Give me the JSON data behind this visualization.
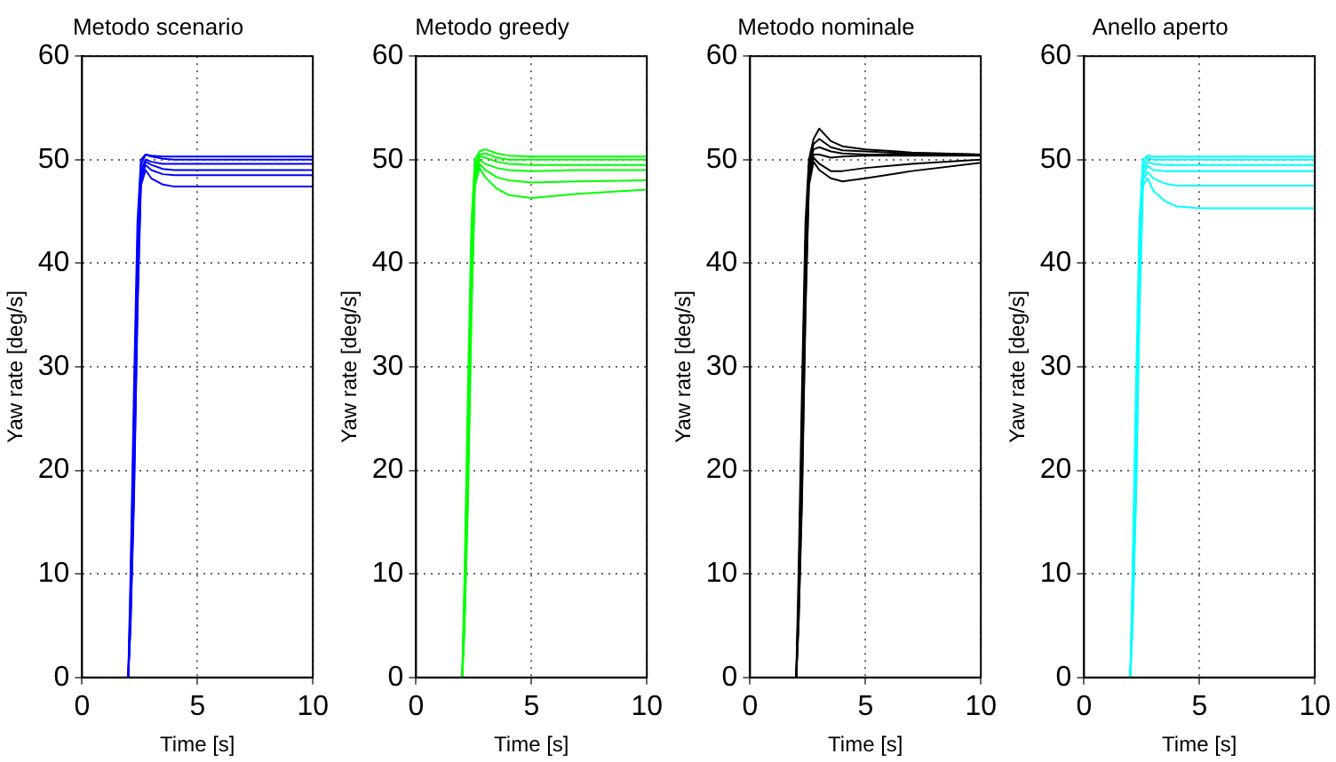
{
  "chart_data": [
    {
      "type": "line",
      "title": "Metodo scenario",
      "xlabel": "Time [s]",
      "ylabel": "Yaw rate [deg/s]",
      "xlim": [
        0,
        10
      ],
      "ylim": [
        0,
        60
      ],
      "xticks": [
        0,
        5,
        10
      ],
      "yticks": [
        0,
        10,
        20,
        30,
        40,
        50,
        60
      ],
      "grid": true,
      "marker": "none",
      "line_style": "solid",
      "series": [
        {
          "color": "#0000ff",
          "x": [
            2,
            2.1,
            2.25,
            2.4,
            2.55,
            2.75,
            3,
            3.5,
            4,
            5,
            7,
            10
          ],
          "values": [
            0,
            10,
            28,
            44,
            50,
            50.5,
            50.4,
            50.3,
            50.3,
            50.3,
            50.3,
            50.3
          ]
        },
        {
          "color": "#0000ff",
          "x": [
            2,
            2.1,
            2.25,
            2.4,
            2.55,
            2.75,
            3,
            3.5,
            4,
            5,
            7,
            10
          ],
          "values": [
            0,
            8,
            25,
            42,
            49.5,
            50.5,
            50.3,
            50.1,
            50,
            50,
            50,
            50
          ]
        },
        {
          "color": "#0000ff",
          "x": [
            2,
            2.1,
            2.25,
            2.4,
            2.55,
            2.75,
            3,
            3.5,
            4,
            5,
            7,
            10
          ],
          "values": [
            0,
            7,
            22,
            40,
            49,
            50,
            49.8,
            49.6,
            49.6,
            49.6,
            49.6,
            49.6
          ]
        },
        {
          "color": "#0000ff",
          "x": [
            2,
            2.1,
            2.25,
            2.4,
            2.55,
            2.75,
            3,
            3.5,
            4,
            5,
            7,
            10
          ],
          "values": [
            0,
            6,
            20,
            38,
            48.5,
            49.8,
            49.5,
            49.1,
            49,
            49,
            49,
            49
          ]
        },
        {
          "color": "#0000ff",
          "x": [
            2,
            2.1,
            2.25,
            2.4,
            2.55,
            2.75,
            3,
            3.5,
            4,
            5,
            7,
            10
          ],
          "values": [
            0,
            5,
            18,
            36,
            48,
            49.5,
            49,
            48.6,
            48.5,
            48.5,
            48.5,
            48.5
          ]
        },
        {
          "color": "#0000ff",
          "x": [
            2,
            2.1,
            2.25,
            2.4,
            2.55,
            2.75,
            3,
            3.5,
            4,
            5,
            7,
            10
          ],
          "values": [
            0,
            5,
            17,
            35,
            47.5,
            49,
            48.2,
            47.6,
            47.4,
            47.4,
            47.4,
            47.4
          ]
        }
      ]
    },
    {
      "type": "line",
      "title": "Metodo greedy",
      "xlabel": "Time [s]",
      "ylabel": "Yaw rate [deg/s]",
      "xlim": [
        0,
        10
      ],
      "ylim": [
        0,
        60
      ],
      "xticks": [
        0,
        5,
        10
      ],
      "yticks": [
        0,
        10,
        20,
        30,
        40,
        50,
        60
      ],
      "grid": true,
      "marker": "none",
      "line_style": "solid",
      "series": [
        {
          "color": "#00ff00",
          "x": [
            2,
            2.1,
            2.25,
            2.4,
            2.55,
            2.75,
            3,
            3.5,
            4,
            5,
            7,
            10
          ],
          "values": [
            0,
            10,
            28,
            44,
            50,
            50.8,
            51,
            50.6,
            50.4,
            50.3,
            50.3,
            50.3
          ]
        },
        {
          "color": "#00ff00",
          "x": [
            2,
            2.1,
            2.25,
            2.4,
            2.55,
            2.75,
            3,
            3.5,
            4,
            5,
            7,
            10
          ],
          "values": [
            0,
            8,
            25,
            42,
            49.5,
            50.5,
            50.6,
            50.2,
            50,
            50,
            50,
            50
          ]
        },
        {
          "color": "#00ff00",
          "x": [
            2,
            2.1,
            2.25,
            2.4,
            2.55,
            2.75,
            3,
            3.5,
            4,
            5,
            7,
            10
          ],
          "values": [
            0,
            7,
            22,
            40,
            49,
            50.3,
            50.2,
            49.8,
            49.6,
            49.5,
            49.5,
            49.5
          ]
        },
        {
          "color": "#00ff00",
          "x": [
            2,
            2.1,
            2.25,
            2.4,
            2.55,
            2.75,
            3,
            3.5,
            4,
            5,
            7,
            10
          ],
          "values": [
            0,
            6,
            20,
            38,
            48.5,
            50,
            49.6,
            49.2,
            49,
            48.9,
            49,
            49
          ]
        },
        {
          "color": "#00ff00",
          "x": [
            2,
            2.1,
            2.25,
            2.4,
            2.55,
            2.75,
            3,
            3.5,
            4,
            5,
            7,
            10
          ],
          "values": [
            0,
            5,
            18,
            36,
            48,
            49.6,
            49,
            48.3,
            48,
            47.8,
            47.9,
            48
          ]
        },
        {
          "color": "#00ff00",
          "x": [
            2,
            2.1,
            2.25,
            2.4,
            2.55,
            2.75,
            3,
            3.5,
            4,
            5,
            7,
            10
          ],
          "values": [
            0,
            5,
            17,
            35,
            47.5,
            49.2,
            48.3,
            47.2,
            46.6,
            46.3,
            46.7,
            47.1
          ]
        }
      ]
    },
    {
      "type": "line",
      "title": "Metodo nominale",
      "xlabel": "Time [s]",
      "ylabel": "Yaw rate [deg/s]",
      "xlim": [
        0,
        10
      ],
      "ylim": [
        0,
        60
      ],
      "xticks": [
        0,
        5,
        10
      ],
      "yticks": [
        0,
        10,
        20,
        30,
        40,
        50,
        60
      ],
      "grid": true,
      "marker": "none",
      "line_style": "solid",
      "series": [
        {
          "color": "#000000",
          "x": [
            2,
            2.1,
            2.25,
            2.4,
            2.55,
            2.75,
            3,
            3.5,
            4,
            5,
            7,
            10
          ],
          "values": [
            0,
            10,
            28,
            44,
            50,
            52,
            53,
            51.8,
            51.3,
            51,
            50.7,
            50.5
          ]
        },
        {
          "color": "#000000",
          "x": [
            2,
            2.1,
            2.25,
            2.4,
            2.55,
            2.75,
            3,
            3.5,
            4,
            5,
            7,
            10
          ],
          "values": [
            0,
            8,
            25,
            42,
            49.5,
            51.5,
            52,
            51.2,
            50.9,
            50.8,
            50.6,
            50.5
          ]
        },
        {
          "color": "#000000",
          "x": [
            2,
            2.1,
            2.25,
            2.4,
            2.55,
            2.75,
            3,
            3.5,
            4,
            5,
            7,
            10
          ],
          "values": [
            0,
            7,
            22,
            40,
            49,
            51,
            51.2,
            50.8,
            50.6,
            50.5,
            50.5,
            50.5
          ]
        },
        {
          "color": "#000000",
          "x": [
            2,
            2.1,
            2.25,
            2.4,
            2.55,
            2.75,
            3,
            3.5,
            4,
            5,
            7,
            10
          ],
          "values": [
            0,
            6,
            20,
            38,
            48.5,
            50.5,
            50.5,
            50.2,
            50.3,
            50.4,
            50.4,
            50.4
          ]
        },
        {
          "color": "#000000",
          "x": [
            2,
            2.1,
            2.25,
            2.4,
            2.55,
            2.75,
            3,
            3.5,
            4,
            5,
            7,
            10
          ],
          "values": [
            0,
            5,
            18,
            36,
            48,
            50.2,
            49.6,
            48.9,
            48.9,
            49.2,
            49.6,
            50
          ]
        },
        {
          "color": "#000000",
          "x": [
            2,
            2.1,
            2.25,
            2.4,
            2.55,
            2.75,
            3,
            3.5,
            4,
            5,
            7,
            10
          ],
          "values": [
            0,
            5,
            17,
            35,
            47.5,
            49.8,
            49,
            48.2,
            47.9,
            48.2,
            48.9,
            49.7
          ]
        }
      ]
    },
    {
      "type": "line",
      "title": "Anello aperto",
      "xlabel": "Time [s]",
      "ylabel": "Yaw rate [deg/s]",
      "xlim": [
        0,
        10
      ],
      "ylim": [
        0,
        60
      ],
      "xticks": [
        0,
        5,
        10
      ],
      "yticks": [
        0,
        10,
        20,
        30,
        40,
        50,
        60
      ],
      "grid": true,
      "marker": "none",
      "line_style": "solid",
      "series": [
        {
          "color": "#00ffff",
          "x": [
            2,
            2.1,
            2.25,
            2.4,
            2.55,
            2.75,
            3,
            3.5,
            4,
            5,
            7,
            10
          ],
          "values": [
            0,
            10,
            28,
            44,
            50,
            50.4,
            50.3,
            50.3,
            50.3,
            50.3,
            50.3,
            50.3
          ]
        },
        {
          "color": "#00ffff",
          "x": [
            2,
            2.1,
            2.25,
            2.4,
            2.55,
            2.75,
            3,
            3.5,
            4,
            5,
            7,
            10
          ],
          "values": [
            0,
            8,
            25,
            42,
            49.5,
            50.2,
            50,
            50,
            50,
            50,
            50,
            50
          ]
        },
        {
          "color": "#00ffff",
          "x": [
            2,
            2.1,
            2.25,
            2.4,
            2.55,
            2.75,
            3,
            3.5,
            4,
            5,
            7,
            10
          ],
          "values": [
            0,
            7,
            22,
            40,
            49,
            49.8,
            49.6,
            49.5,
            49.5,
            49.5,
            49.5,
            49.5
          ]
        },
        {
          "color": "#00ffff",
          "x": [
            2,
            2.1,
            2.25,
            2.4,
            2.55,
            2.75,
            3,
            3.5,
            4,
            5,
            7,
            10
          ],
          "values": [
            0,
            6,
            20,
            38,
            48.5,
            49.4,
            49,
            48.9,
            48.9,
            48.9,
            48.9,
            48.9
          ]
        },
        {
          "color": "#00ffff",
          "x": [
            2,
            2.1,
            2.25,
            2.4,
            2.55,
            2.75,
            3,
            3.5,
            4,
            5,
            7,
            10
          ],
          "values": [
            0,
            5,
            18,
            36,
            48,
            48.8,
            48.2,
            47.7,
            47.5,
            47.5,
            47.5,
            47.5
          ]
        },
        {
          "color": "#00ffff",
          "x": [
            2,
            2.1,
            2.25,
            2.4,
            2.55,
            2.75,
            3,
            3.5,
            4,
            5,
            7,
            10
          ],
          "values": [
            0,
            5,
            17,
            35,
            47.5,
            48.2,
            47,
            46,
            45.5,
            45.3,
            45.3,
            45.3
          ]
        }
      ]
    }
  ]
}
